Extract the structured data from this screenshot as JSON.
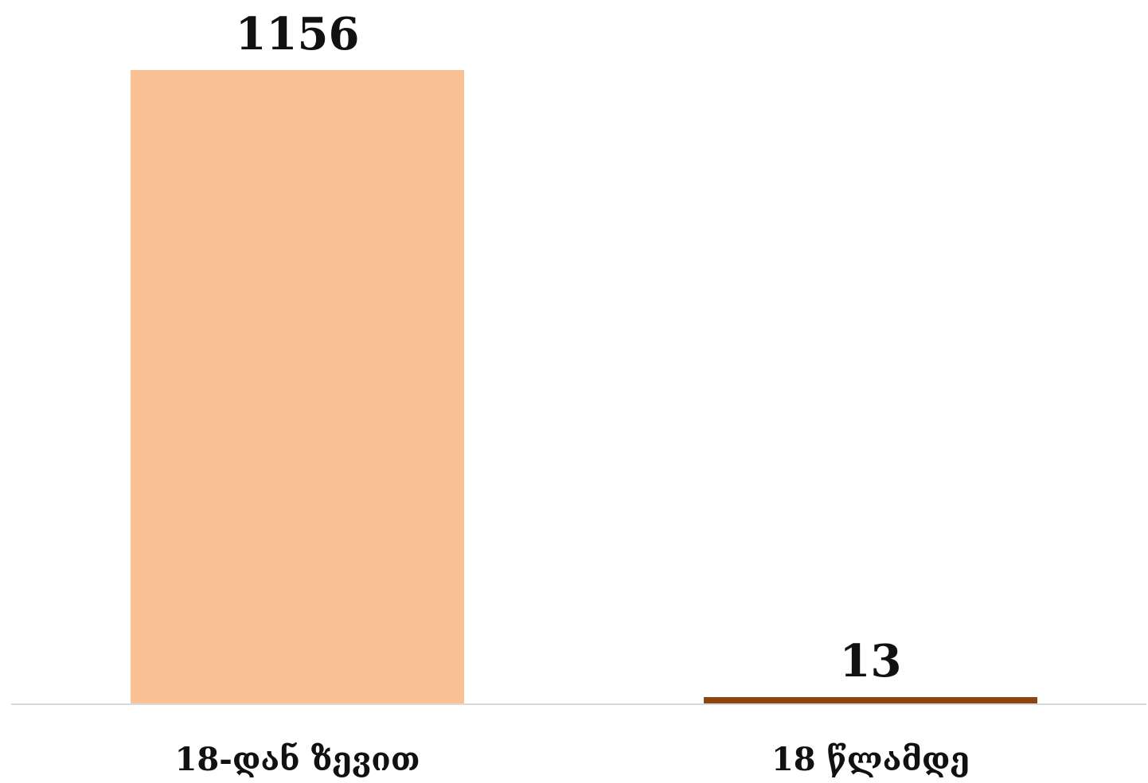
{
  "chart_data": {
    "type": "bar",
    "title": "",
    "xlabel": "",
    "ylabel": "",
    "categories": [
      "18-დან ზევით",
      "18 წლამდე"
    ],
    "values": [
      1156,
      13
    ],
    "colors": [
      "#F9C194",
      "#8B4513"
    ],
    "ylim": [
      0,
      1156
    ],
    "grid": false,
    "legend": "none",
    "data_labels": [
      "1156",
      "13"
    ],
    "axis_color": "#D9D9D9"
  }
}
